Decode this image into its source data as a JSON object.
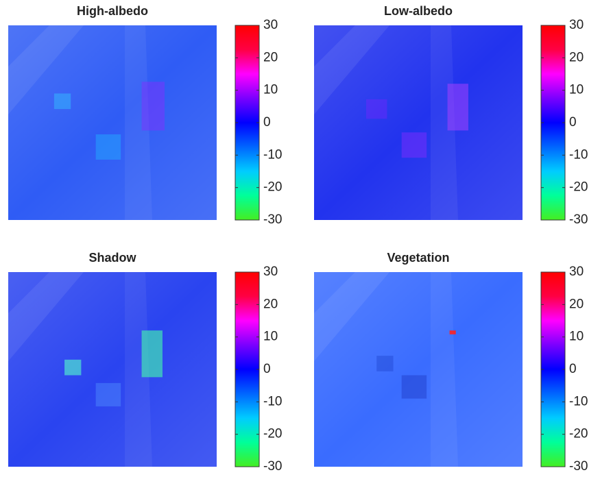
{
  "chart_data": [
    {
      "type": "heatmap",
      "title": "High-albedo",
      "color": "#2f5cf5",
      "clim": [
        -30,
        30
      ],
      "cticks": [
        -30,
        -20,
        -10,
        0,
        10,
        20,
        30
      ],
      "colormap": [
        "#44ee22",
        "#00ff99",
        "#00ccff",
        "#0066ff",
        "#0000ff",
        "#7a00ff",
        "#ff00ff",
        "#ff0044",
        "#ff0000"
      ]
    },
    {
      "type": "heatmap",
      "title": "Low-albedo",
      "color": "#2233ee",
      "clim": [
        -30,
        30
      ],
      "cticks": [
        -30,
        -20,
        -10,
        0,
        10,
        20,
        30
      ],
      "colormap": [
        "#44ee22",
        "#00ff99",
        "#00ccff",
        "#0066ff",
        "#0000ff",
        "#7a00ff",
        "#ff00ff",
        "#ff0044",
        "#ff0000"
      ]
    },
    {
      "type": "heatmap",
      "title": "Shadow",
      "color": "#2a44f0",
      "clim": [
        -30,
        30
      ],
      "cticks": [
        -30,
        -20,
        -10,
        0,
        10,
        20,
        30
      ],
      "colormap": [
        "#44ee22",
        "#00ff99",
        "#00ccff",
        "#0066ff",
        "#0000ff",
        "#7a00ff",
        "#ff00ff",
        "#ff0044",
        "#ff0000"
      ]
    },
    {
      "type": "heatmap",
      "title": "Vegetation",
      "color": "#3a6cff",
      "clim": [
        -30,
        30
      ],
      "cticks": [
        -30,
        -20,
        -10,
        0,
        10,
        20,
        30
      ],
      "colormap": [
        "#44ee22",
        "#00ff99",
        "#00ccff",
        "#0066ff",
        "#0000ff",
        "#7a00ff",
        "#ff00ff",
        "#ff0044",
        "#ff0000"
      ]
    }
  ]
}
